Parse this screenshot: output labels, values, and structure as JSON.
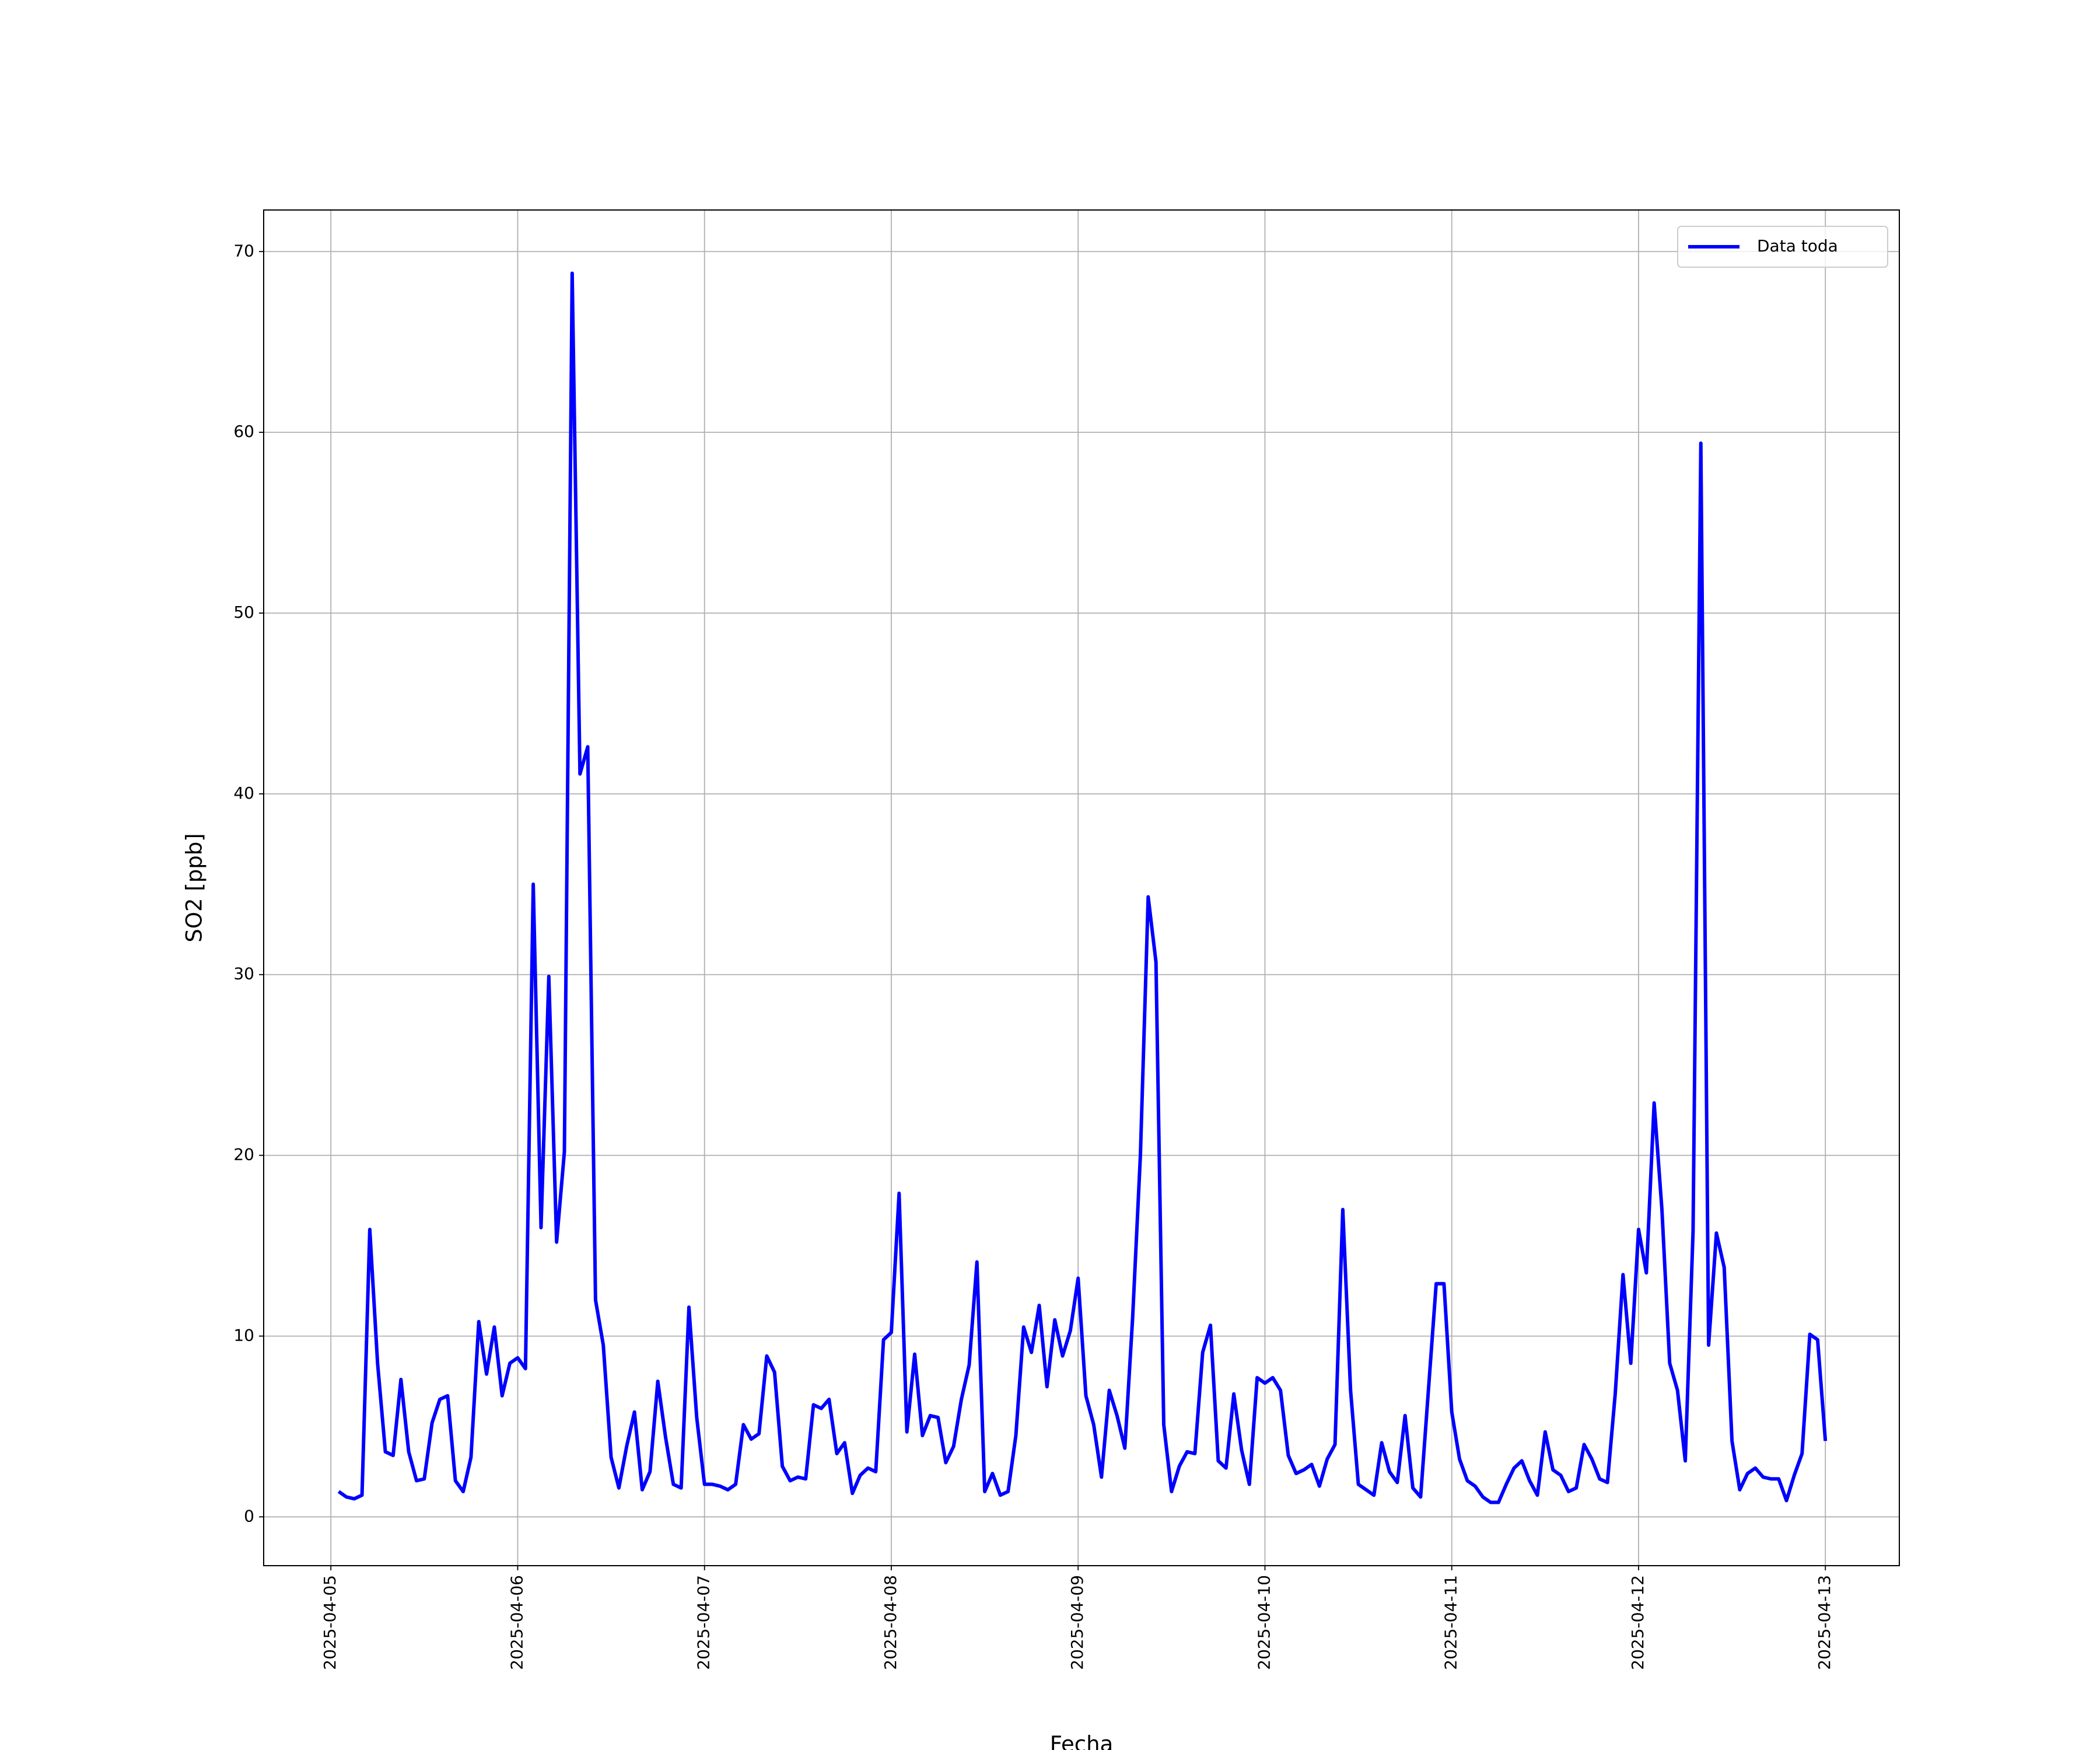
{
  "chart_data": {
    "type": "line",
    "xlabel": "Fecha",
    "ylabel": "SO2 [ppb]",
    "x": [
      "2025-04-05 01:00",
      "2025-04-05 02:00",
      "2025-04-05 03:00",
      "2025-04-05 04:00",
      "2025-04-05 05:00",
      "2025-04-05 06:00",
      "2025-04-05 07:00",
      "2025-04-05 08:00",
      "2025-04-05 09:00",
      "2025-04-05 10:00",
      "2025-04-05 11:00",
      "2025-04-05 12:00",
      "2025-04-05 13:00",
      "2025-04-05 14:00",
      "2025-04-05 15:00",
      "2025-04-05 16:00",
      "2025-04-05 17:00",
      "2025-04-05 18:00",
      "2025-04-05 19:00",
      "2025-04-05 20:00",
      "2025-04-05 21:00",
      "2025-04-05 22:00",
      "2025-04-05 23:00",
      "2025-04-06 00:00",
      "2025-04-06 01:00",
      "2025-04-06 02:00",
      "2025-04-06 03:00",
      "2025-04-06 04:00",
      "2025-04-06 05:00",
      "2025-04-06 06:00",
      "2025-04-06 07:00",
      "2025-04-06 08:00",
      "2025-04-06 09:00",
      "2025-04-06 10:00",
      "2025-04-06 11:00",
      "2025-04-06 12:00",
      "2025-04-06 13:00",
      "2025-04-06 14:00",
      "2025-04-06 15:00",
      "2025-04-06 16:00",
      "2025-04-06 17:00",
      "2025-04-06 18:00",
      "2025-04-06 19:00",
      "2025-04-06 20:00",
      "2025-04-06 21:00",
      "2025-04-06 22:00",
      "2025-04-06 23:00",
      "2025-04-07 00:00",
      "2025-04-07 01:00",
      "2025-04-07 02:00",
      "2025-04-07 03:00",
      "2025-04-07 04:00",
      "2025-04-07 05:00",
      "2025-04-07 06:00",
      "2025-04-07 07:00",
      "2025-04-07 08:00",
      "2025-04-07 09:00",
      "2025-04-07 10:00",
      "2025-04-07 11:00",
      "2025-04-07 12:00",
      "2025-04-07 13:00",
      "2025-04-07 14:00",
      "2025-04-07 15:00",
      "2025-04-07 16:00",
      "2025-04-07 17:00",
      "2025-04-07 18:00",
      "2025-04-07 19:00",
      "2025-04-07 20:00",
      "2025-04-07 21:00",
      "2025-04-07 22:00",
      "2025-04-07 23:00",
      "2025-04-08 00:00",
      "2025-04-08 01:00",
      "2025-04-08 02:00",
      "2025-04-08 03:00",
      "2025-04-08 04:00",
      "2025-04-08 05:00",
      "2025-04-08 06:00",
      "2025-04-08 07:00",
      "2025-04-08 08:00",
      "2025-04-08 09:00",
      "2025-04-08 10:00",
      "2025-04-08 11:00",
      "2025-04-08 12:00",
      "2025-04-08 13:00",
      "2025-04-08 14:00",
      "2025-04-08 15:00",
      "2025-04-08 16:00",
      "2025-04-08 17:00",
      "2025-04-08 18:00",
      "2025-04-08 19:00",
      "2025-04-08 20:00",
      "2025-04-08 21:00",
      "2025-04-08 22:00",
      "2025-04-08 23:00",
      "2025-04-09 00:00",
      "2025-04-09 01:00",
      "2025-04-09 02:00",
      "2025-04-09 03:00",
      "2025-04-09 04:00",
      "2025-04-09 05:00",
      "2025-04-09 06:00",
      "2025-04-09 07:00",
      "2025-04-09 08:00",
      "2025-04-09 09:00",
      "2025-04-09 10:00",
      "2025-04-09 11:00",
      "2025-04-09 12:00",
      "2025-04-09 13:00",
      "2025-04-09 14:00",
      "2025-04-09 15:00",
      "2025-04-09 16:00",
      "2025-04-09 17:00",
      "2025-04-09 18:00",
      "2025-04-09 19:00",
      "2025-04-09 20:00",
      "2025-04-09 21:00",
      "2025-04-09 22:00",
      "2025-04-09 23:00",
      "2025-04-10 00:00",
      "2025-04-10 01:00",
      "2025-04-10 02:00",
      "2025-04-10 03:00",
      "2025-04-10 04:00",
      "2025-04-10 05:00",
      "2025-04-10 06:00",
      "2025-04-10 07:00",
      "2025-04-10 08:00",
      "2025-04-10 09:00",
      "2025-04-10 10:00",
      "2025-04-10 11:00",
      "2025-04-10 12:00",
      "2025-04-10 13:00",
      "2025-04-10 14:00",
      "2025-04-10 15:00",
      "2025-04-10 16:00",
      "2025-04-10 17:00",
      "2025-04-10 18:00",
      "2025-04-10 19:00",
      "2025-04-10 20:00",
      "2025-04-10 21:00",
      "2025-04-10 22:00",
      "2025-04-10 23:00",
      "2025-04-11 00:00",
      "2025-04-11 01:00",
      "2025-04-11 02:00",
      "2025-04-11 03:00",
      "2025-04-11 04:00",
      "2025-04-11 05:00",
      "2025-04-11 06:00",
      "2025-04-11 07:00",
      "2025-04-11 08:00",
      "2025-04-11 09:00",
      "2025-04-11 10:00",
      "2025-04-11 11:00",
      "2025-04-11 12:00",
      "2025-04-11 13:00",
      "2025-04-11 14:00",
      "2025-04-11 15:00",
      "2025-04-11 16:00",
      "2025-04-11 17:00",
      "2025-04-11 18:00",
      "2025-04-11 19:00",
      "2025-04-11 20:00",
      "2025-04-11 21:00",
      "2025-04-11 22:00",
      "2025-04-11 23:00",
      "2025-04-12 00:00",
      "2025-04-12 01:00",
      "2025-04-12 02:00",
      "2025-04-12 03:00",
      "2025-04-12 04:00",
      "2025-04-12 05:00",
      "2025-04-12 06:00",
      "2025-04-12 07:00",
      "2025-04-12 08:00",
      "2025-04-12 09:00",
      "2025-04-12 10:00",
      "2025-04-12 11:00",
      "2025-04-12 12:00",
      "2025-04-12 13:00",
      "2025-04-12 14:00",
      "2025-04-12 15:00",
      "2025-04-12 16:00",
      "2025-04-12 17:00",
      "2025-04-12 18:00",
      "2025-04-12 19:00",
      "2025-04-12 20:00",
      "2025-04-12 21:00",
      "2025-04-12 22:00",
      "2025-04-12 23:00",
      "2025-04-13 00:00"
    ],
    "series": [
      {
        "name": "Data toda",
        "color": "#0000ff",
        "values": [
          1.4,
          1.1,
          1.0,
          1.2,
          15.9,
          8.5,
          3.6,
          3.4,
          7.6,
          3.6,
          2.0,
          2.1,
          5.2,
          6.5,
          6.7,
          2.0,
          1.4,
          3.3,
          10.8,
          7.9,
          10.5,
          6.7,
          8.5,
          8.8,
          8.2,
          35.0,
          16.0,
          29.9,
          15.2,
          20.2,
          68.8,
          41.1,
          42.6,
          12.0,
          9.5,
          3.3,
          1.6,
          3.9,
          5.8,
          1.5,
          2.5,
          7.5,
          4.4,
          1.8,
          1.6,
          11.6,
          5.5,
          1.8,
          1.8,
          1.7,
          1.5,
          1.8,
          5.1,
          4.3,
          4.6,
          8.9,
          8.0,
          2.8,
          2.0,
          2.2,
          2.1,
          6.2,
          6.0,
          6.5,
          3.5,
          4.1,
          1.3,
          2.3,
          2.7,
          2.5,
          9.8,
          10.2,
          17.9,
          4.7,
          9.0,
          4.5,
          5.6,
          5.5,
          3.0,
          3.9,
          6.5,
          8.4,
          14.1,
          1.4,
          2.4,
          1.2,
          1.4,
          4.5,
          10.5,
          9.1,
          11.7,
          7.2,
          10.9,
          8.9,
          10.3,
          13.2,
          6.7,
          5.1,
          2.2,
          7.0,
          5.6,
          3.8,
          11.0,
          20.0,
          34.3,
          30.7,
          5.1,
          1.4,
          2.8,
          3.6,
          3.5,
          9.1,
          10.6,
          3.1,
          2.7,
          6.8,
          3.7,
          1.8,
          7.7,
          7.4,
          7.7,
          7.0,
          3.4,
          2.4,
          2.6,
          2.9,
          1.7,
          3.2,
          4.0,
          17.0,
          7.0,
          1.8,
          1.5,
          1.2,
          4.1,
          2.5,
          1.9,
          5.6,
          1.6,
          1.1,
          7.0,
          12.9,
          12.9,
          5.8,
          3.2,
          2.0,
          1.7,
          1.1,
          0.8,
          0.8,
          1.8,
          2.7,
          3.1,
          2.0,
          1.2,
          4.7,
          2.6,
          2.3,
          1.4,
          1.6,
          4.0,
          3.2,
          2.1,
          1.9,
          6.8,
          13.4,
          8.5,
          15.9,
          13.5,
          22.9,
          17.0,
          8.5,
          7.0,
          3.1,
          15.8,
          59.4,
          9.5,
          15.7,
          13.8,
          4.2,
          1.5,
          2.4,
          2.7,
          2.2,
          2.1,
          2.1,
          0.9,
          2.3,
          3.5,
          10.1,
          9.8,
          4.2
        ]
      }
    ],
    "xlim": [
      "2025-04-04 15:22",
      "2025-04-13 09:30"
    ],
    "xticks": [
      "2025-04-05",
      "2025-04-06",
      "2025-04-07",
      "2025-04-08",
      "2025-04-09",
      "2025-04-10",
      "2025-04-11",
      "2025-04-12",
      "2025-04-13"
    ],
    "ylim": [
      -2.7,
      72.3
    ],
    "yticks": [
      0,
      10,
      20,
      30,
      40,
      50,
      60,
      70
    ],
    "grid": true,
    "legend": "upper right"
  }
}
